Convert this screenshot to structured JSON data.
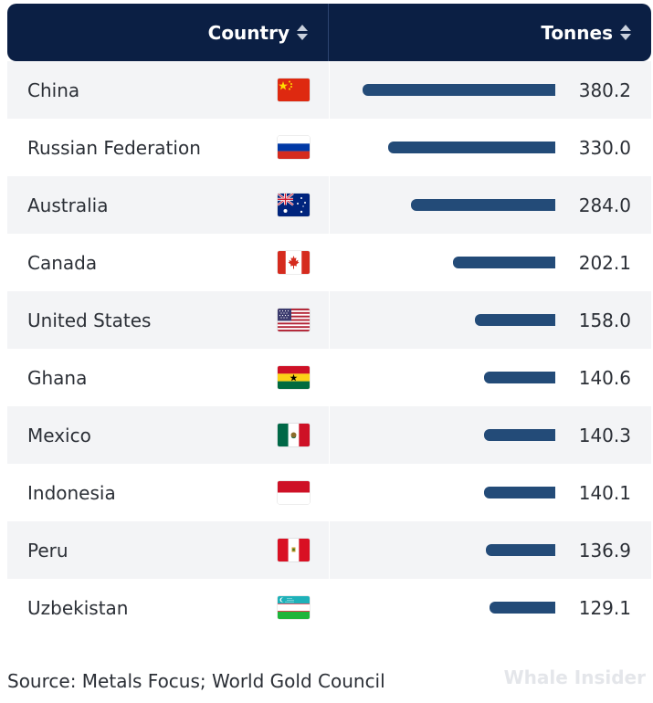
{
  "header": {
    "country_label": "Country",
    "tonnes_label": "Tonnes"
  },
  "chart_data": {
    "type": "table",
    "bar_max": 380.2,
    "rows": [
      {
        "country": "China",
        "flag": "china-flag-icon",
        "value": 380.2,
        "value_label": "380.2"
      },
      {
        "country": "Russian Federation",
        "flag": "russia-flag-icon",
        "value": 330.0,
        "value_label": "330.0"
      },
      {
        "country": "Australia",
        "flag": "australia-flag-icon",
        "value": 284.0,
        "value_label": "284.0"
      },
      {
        "country": "Canada",
        "flag": "canada-flag-icon",
        "value": 202.1,
        "value_label": "202.1"
      },
      {
        "country": "United States",
        "flag": "usa-flag-icon",
        "value": 158.0,
        "value_label": "158.0"
      },
      {
        "country": "Ghana",
        "flag": "ghana-flag-icon",
        "value": 140.6,
        "value_label": "140.6"
      },
      {
        "country": "Mexico",
        "flag": "mexico-flag-icon",
        "value": 140.3,
        "value_label": "140.3"
      },
      {
        "country": "Indonesia",
        "flag": "indonesia-flag-icon",
        "value": 140.1,
        "value_label": "140.1"
      },
      {
        "country": "Peru",
        "flag": "peru-flag-icon",
        "value": 136.9,
        "value_label": "136.9"
      },
      {
        "country": "Uzbekistan",
        "flag": "uzbekistan-flag-icon",
        "value": 129.1,
        "value_label": "129.1"
      }
    ]
  },
  "colors": {
    "header_bg": "#0b1f44",
    "bar": "#234b78",
    "alt_row": "#f3f4f6"
  },
  "footer": {
    "source": "Source: Metals Focus; World Gold Council",
    "watermark": "Whale Insider"
  }
}
